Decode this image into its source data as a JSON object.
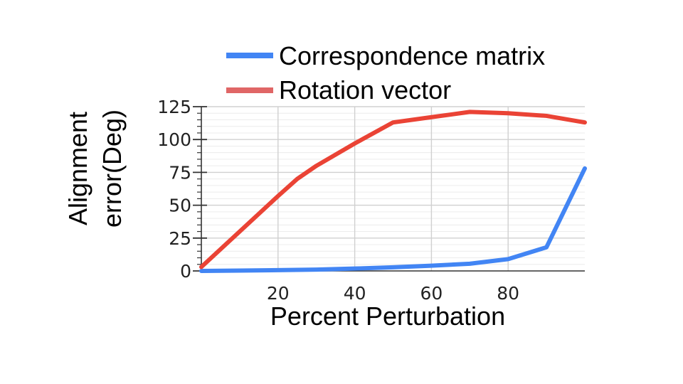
{
  "chart_data": {
    "type": "line",
    "title": "",
    "xlabel": "Percent Perturbation",
    "ylabel": [
      "Alignment",
      "error(Deg)"
    ],
    "xlim": [
      0,
      100
    ],
    "ylim": [
      0,
      125
    ],
    "xticks": [
      20,
      40,
      60,
      80
    ],
    "yticks": [
      0,
      25,
      50,
      75,
      100,
      125
    ],
    "grid": true,
    "legend_position": "top",
    "series": [
      {
        "name": "Correspondence matrix",
        "color": "#4285f4",
        "x": [
          0,
          10,
          20,
          30,
          40,
          50,
          60,
          70,
          80,
          90,
          100
        ],
        "y": [
          0,
          0.3,
          0.6,
          1,
          1.8,
          2.8,
          4,
          5.5,
          9,
          18,
          78
        ]
      },
      {
        "name": "Rotation vector",
        "color": "#ea4335",
        "x": [
          0,
          10,
          20,
          25,
          30,
          40,
          50,
          60,
          70,
          80,
          90,
          100
        ],
        "y": [
          3,
          30,
          57,
          70,
          80,
          97,
          113,
          117,
          121,
          120,
          118,
          113
        ]
      }
    ]
  }
}
